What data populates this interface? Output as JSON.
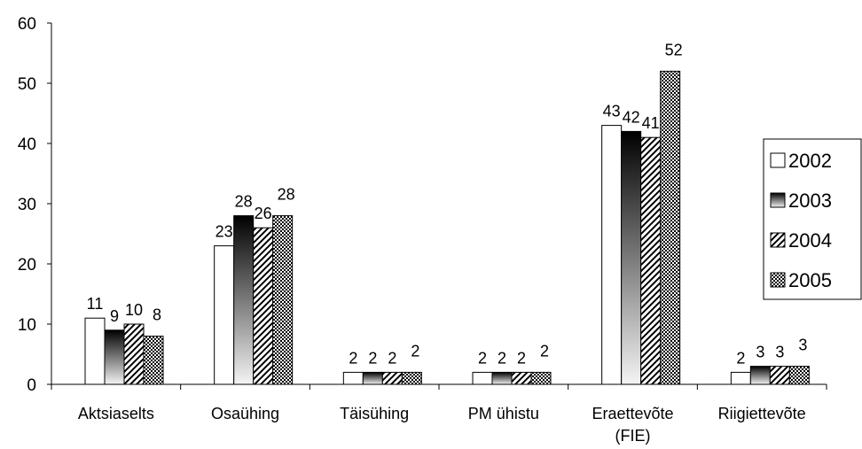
{
  "chart_data": {
    "type": "bar",
    "title": "",
    "xlabel": "",
    "ylabel": "",
    "ylim": [
      0,
      60
    ],
    "yticks": [
      0,
      10,
      20,
      30,
      40,
      50,
      60
    ],
    "grid": false,
    "legend_position": "right",
    "categories": [
      [
        "Aktsiaselts"
      ],
      [
        "Osaühing"
      ],
      [
        "Täisühing"
      ],
      [
        "PM ühistu"
      ],
      [
        "Eraettevõte",
        "(FIE)"
      ],
      [
        "Riigiettevõte"
      ]
    ],
    "series": [
      {
        "name": "2002",
        "values": [
          11,
          23,
          2,
          2,
          43,
          2
        ],
        "fill": "white"
      },
      {
        "name": "2003",
        "values": [
          9,
          28,
          2,
          2,
          42,
          3
        ],
        "fill": "gradient-dark-to-light"
      },
      {
        "name": "2004",
        "values": [
          10,
          26,
          2,
          2,
          41,
          3
        ],
        "fill": "diagonal-hatch"
      },
      {
        "name": "2005",
        "values": [
          8,
          28,
          2,
          2,
          52,
          3
        ],
        "fill": "checkerboard"
      }
    ]
  }
}
